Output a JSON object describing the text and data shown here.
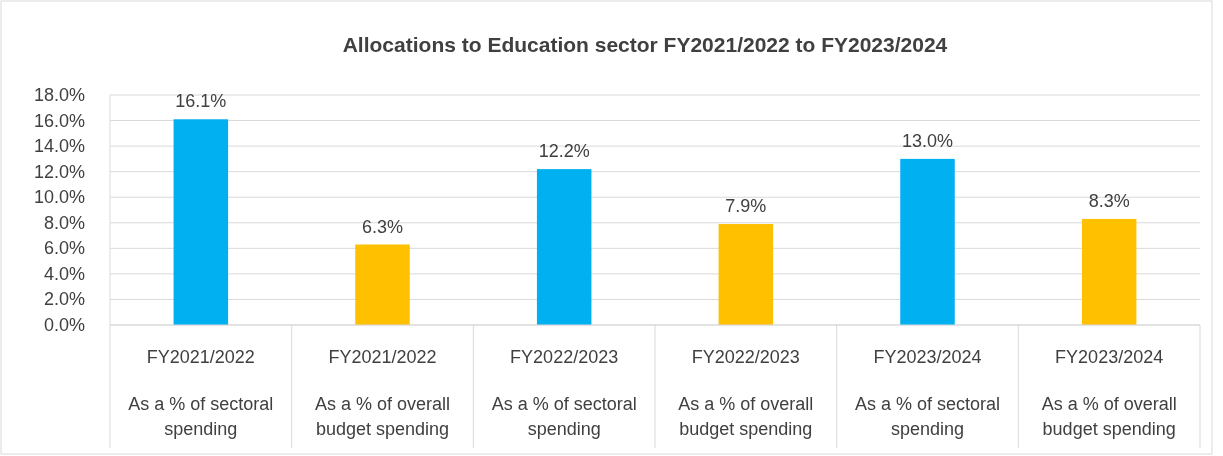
{
  "chart_data": {
    "type": "bar",
    "title": "Allocations to Education sector FY2021/2022 to FY2023/2024",
    "categories": [
      "FY2021/2022\nAs a % of sectoral spending",
      "FY2021/2022\nAs a % of overall budget spending",
      "FY2022/2023\nAs a % of sectoral spending",
      "FY2022/2023\nAs a % of overall budget spending",
      "FY2023/2024\nAs a % of sectoral spending",
      "FY2023/2024\nAs a % of overall budget spending"
    ],
    "values": [
      16.1,
      6.3,
      12.2,
      7.9,
      13.0,
      8.3
    ],
    "colors": [
      "#00b0f0",
      "#ffc000",
      "#00b0f0",
      "#ffc000",
      "#00b0f0",
      "#ffc000"
    ],
    "value_labels": [
      "16.1%",
      "6.3%",
      "12.2%",
      "7.9%",
      "13.0%",
      "8.3%"
    ],
    "ylim": [
      0,
      18
    ],
    "yticks": [
      {
        "value": 0,
        "label": "0.0%"
      },
      {
        "value": 2,
        "label": "2.0%"
      },
      {
        "value": 4,
        "label": "4.0%"
      },
      {
        "value": 6,
        "label": "6.0%"
      },
      {
        "value": 8,
        "label": "8.0%"
      },
      {
        "value": 10,
        "label": "10.0%"
      },
      {
        "value": 12,
        "label": "12.0%"
      },
      {
        "value": 14,
        "label": "14.0%"
      },
      {
        "value": 16,
        "label": "16.0%"
      },
      {
        "value": 18,
        "label": "18.0%"
      }
    ],
    "grid": "y"
  }
}
